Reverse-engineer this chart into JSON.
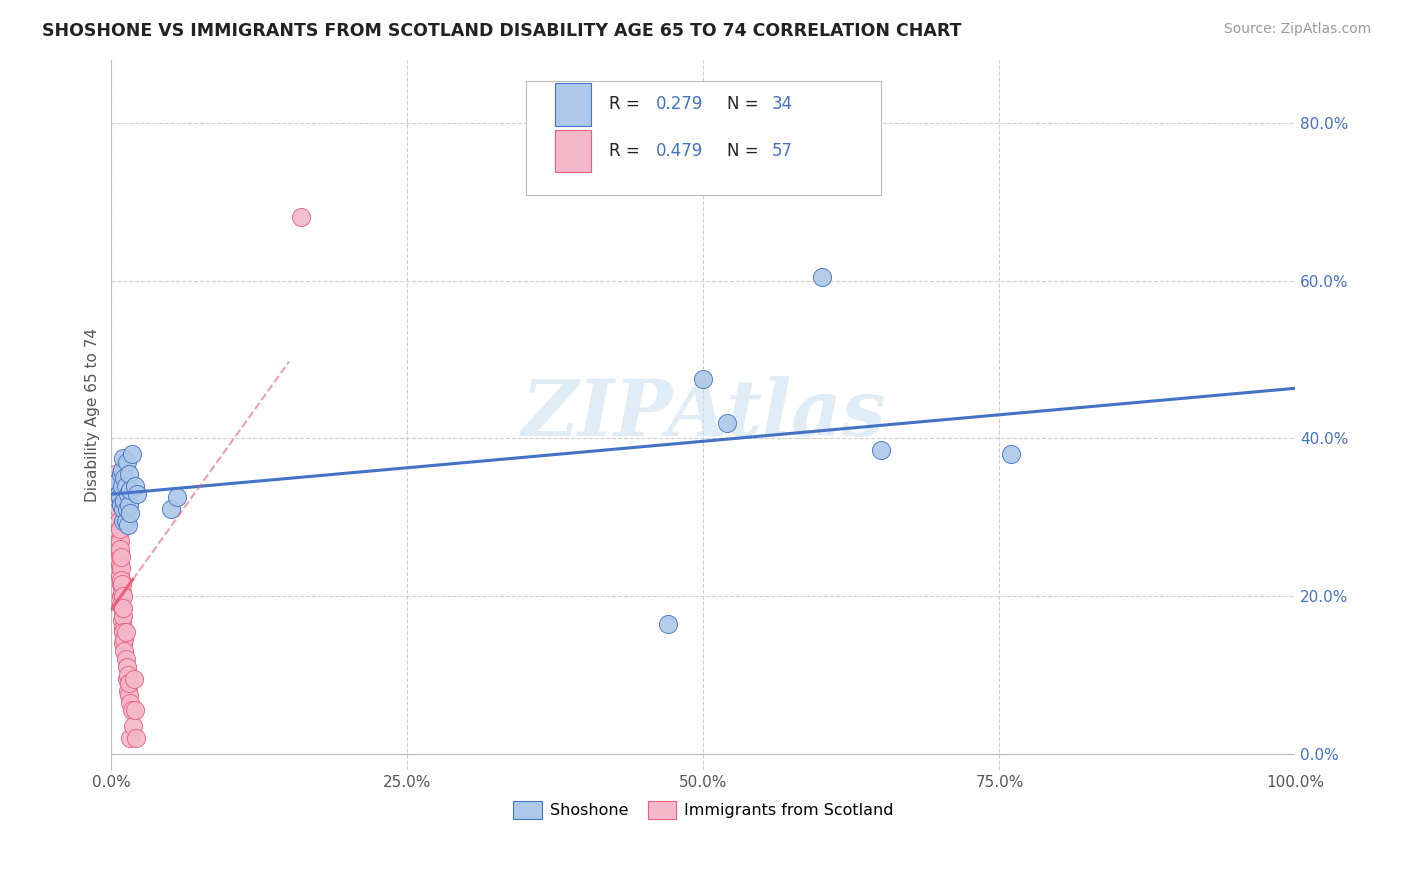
{
  "title": "SHOSHONE VS IMMIGRANTS FROM SCOTLAND DISABILITY AGE 65 TO 74 CORRELATION CHART",
  "source": "Source: ZipAtlas.com",
  "ylabel": "Disability Age 65 to 74",
  "watermark": "ZIPAtlas",
  "label1": "Shoshone",
  "label2": "Immigrants from Scotland",
  "color1": "#adc8e8",
  "color2": "#f5b8cb",
  "line_color1": "#4472c4",
  "line_color2": "#e8607a",
  "background": "#ffffff",
  "grid_color": "#c8c8c8",
  "xlim": [
    0.0,
    1.0
  ],
  "ylim": [
    -0.02,
    0.88
  ],
  "xticks": [
    0.0,
    0.25,
    0.5,
    0.75,
    1.0
  ],
  "yticks": [
    0.0,
    0.2,
    0.4,
    0.6,
    0.8
  ],
  "shoshone_x": [
    0.005,
    0.005,
    0.006,
    0.007,
    0.008,
    0.008,
    0.009,
    0.009,
    0.01,
    0.01,
    0.01,
    0.011,
    0.011,
    0.012,
    0.012,
    0.013,
    0.013,
    0.014,
    0.014,
    0.015,
    0.015,
    0.016,
    0.016,
    0.017,
    0.02,
    0.022,
    0.05,
    0.055,
    0.5,
    0.52,
    0.6,
    0.65,
    0.76,
    0.47
  ],
  "shoshone_y": [
    0.335,
    0.345,
    0.33,
    0.325,
    0.315,
    0.355,
    0.34,
    0.36,
    0.295,
    0.31,
    0.375,
    0.32,
    0.35,
    0.295,
    0.34,
    0.31,
    0.37,
    0.29,
    0.33,
    0.315,
    0.355,
    0.305,
    0.335,
    0.38,
    0.34,
    0.33,
    0.31,
    0.325,
    0.475,
    0.42,
    0.605,
    0.385,
    0.38,
    0.165
  ],
  "scotland_x": [
    0.003,
    0.003,
    0.004,
    0.004,
    0.004,
    0.004,
    0.005,
    0.005,
    0.005,
    0.005,
    0.005,
    0.005,
    0.006,
    0.006,
    0.006,
    0.006,
    0.006,
    0.007,
    0.007,
    0.007,
    0.007,
    0.007,
    0.007,
    0.008,
    0.008,
    0.008,
    0.008,
    0.008,
    0.008,
    0.009,
    0.009,
    0.009,
    0.009,
    0.01,
    0.01,
    0.01,
    0.01,
    0.01,
    0.01,
    0.011,
    0.011,
    0.012,
    0.012,
    0.013,
    0.013,
    0.014,
    0.014,
    0.015,
    0.015,
    0.016,
    0.016,
    0.017,
    0.018,
    0.019,
    0.02,
    0.021,
    0.16
  ],
  "scotland_y": [
    0.34,
    0.355,
    0.31,
    0.325,
    0.295,
    0.315,
    0.28,
    0.3,
    0.265,
    0.33,
    0.255,
    0.345,
    0.245,
    0.28,
    0.31,
    0.27,
    0.295,
    0.255,
    0.27,
    0.24,
    0.285,
    0.225,
    0.26,
    0.215,
    0.235,
    0.2,
    0.22,
    0.25,
    0.19,
    0.205,
    0.17,
    0.215,
    0.185,
    0.16,
    0.2,
    0.175,
    0.14,
    0.155,
    0.185,
    0.145,
    0.13,
    0.155,
    0.12,
    0.11,
    0.095,
    0.08,
    0.1,
    0.075,
    0.09,
    0.065,
    0.02,
    0.055,
    0.035,
    0.095,
    0.055,
    0.02,
    0.68
  ]
}
